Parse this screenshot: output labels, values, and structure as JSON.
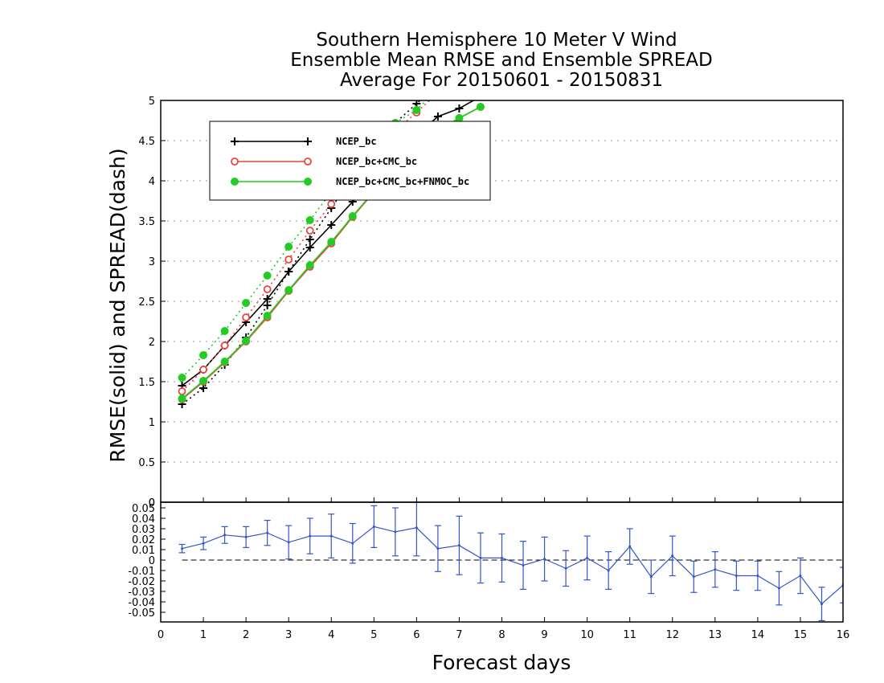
{
  "chart_data": [
    {
      "type": "line",
      "title": [
        "Southern Hemisphere 10 Meter V Wind",
        "Ensemble Mean RMSE and Ensemble SPREAD",
        "Average For 20150601 - 20150831"
      ],
      "xlabel": "Forecast days",
      "ylabel": "RMSE(solid) and SPREAD(dash)",
      "xlim": [
        0,
        16
      ],
      "ylim": [
        0,
        5
      ],
      "xticks": [
        "0",
        "1",
        "2",
        "3",
        "4",
        "5",
        "6",
        "7",
        "8",
        "9",
        "10",
        "11",
        "12",
        "13",
        "14",
        "15",
        "16"
      ],
      "yticks": [
        "0",
        "0.5",
        "1",
        "1.5",
        "2",
        "2.5",
        "3",
        "3.5",
        "4",
        "4.5",
        "5"
      ],
      "grid": true,
      "legend_position": "top-left",
      "series": [
        {
          "name": "NCEP_bc",
          "color": "#000000",
          "marker": "plus",
          "rmse": {
            "x": [
              0.5,
              1.0,
              1.5,
              2.0,
              2.5,
              3.0,
              3.5,
              4.0,
              4.5,
              5.0,
              5.5,
              6.0,
              6.5,
              7.0,
              7.5
            ],
            "y": [
              1.45,
              1.65,
              1.95,
              2.24,
              2.53,
              2.87,
              3.17,
              3.45,
              3.74,
              4.02,
              4.3,
              4.57,
              4.8,
              4.9,
              5.05
            ]
          },
          "spread": {
            "x": [
              0.5,
              1.0,
              1.5,
              2.0,
              2.5,
              3.0,
              3.5,
              4.0,
              4.5,
              5.0,
              5.5,
              6.0,
              6.5
            ],
            "y": [
              1.22,
              1.42,
              1.71,
              2.05,
              2.45,
              2.87,
              3.27,
              3.66,
              4.05,
              4.4,
              4.72,
              4.96,
              5.2
            ]
          }
        },
        {
          "name": "NCEP_bc+CMC_bc",
          "color": "#e8453c",
          "marker": "open-circle",
          "rmse": {
            "x": [
              0.5,
              1.0,
              1.5,
              2.0,
              2.5,
              3.0,
              3.5,
              4.0,
              4.5,
              5.0,
              5.5,
              6.0,
              6.5,
              7.0,
              7.5
            ],
            "y": [
              1.28,
              1.5,
              1.74,
              2.0,
              2.3,
              2.63,
              2.93,
              3.22,
              3.55,
              3.86,
              4.15,
              4.43,
              4.62,
              4.78,
              4.92
            ]
          },
          "spread": {
            "x": [
              0.5,
              1.0,
              1.5,
              2.0,
              2.5,
              3.0,
              3.5,
              4.0,
              4.5,
              5.0,
              5.5,
              6.0,
              6.5
            ],
            "y": [
              1.38,
              1.65,
              1.95,
              2.3,
              2.65,
              3.02,
              3.38,
              3.71,
              4.05,
              4.35,
              4.62,
              4.85,
              5.1
            ]
          }
        },
        {
          "name": "NCEP_bc+CMC_bc+FNMOC_bc",
          "color": "#22cc22",
          "marker": "filled-circle",
          "rmse": {
            "x": [
              0.5,
              1.0,
              1.5,
              2.0,
              2.5,
              3.0,
              3.5,
              4.0,
              4.5,
              5.0,
              5.5,
              6.0,
              6.5,
              7.0,
              7.5
            ],
            "y": [
              1.29,
              1.51,
              1.75,
              2.01,
              2.32,
              2.64,
              2.95,
              3.24,
              3.56,
              3.87,
              4.16,
              4.44,
              4.63,
              4.78,
              4.92
            ]
          },
          "spread": {
            "x": [
              0.5,
              1.0,
              1.5,
              2.0,
              2.5,
              3.0,
              3.5,
              4.0,
              4.5,
              5.0,
              5.5,
              6.0,
              6.5
            ],
            "y": [
              1.55,
              1.83,
              2.13,
              2.48,
              2.82,
              3.18,
              3.51,
              3.86,
              4.2,
              4.48,
              4.72,
              4.88,
              5.15
            ]
          }
        }
      ]
    },
    {
      "type": "line",
      "title": "",
      "xlabel": "Forecast days",
      "ylabel": "",
      "xlim": [
        0,
        16
      ],
      "ylim": [
        -0.058,
        0.058
      ],
      "xticks": [
        "0",
        "1",
        "2",
        "3",
        "4",
        "5",
        "6",
        "7",
        "8",
        "9",
        "10",
        "11",
        "12",
        "13",
        "14",
        "15",
        "16"
      ],
      "yticks": [
        "0.05",
        "0.04",
        "0.03",
        "0.02",
        "0.01",
        "0",
        "-0.01",
        "-0.02",
        "-0.03",
        "-0.04",
        "-0.05"
      ],
      "ytick_values": [
        0.05,
        0.04,
        0.03,
        0.02,
        0.01,
        0,
        -0.01,
        -0.02,
        -0.03,
        -0.04,
        -0.05
      ],
      "top_tick": "0",
      "reference_line": 0,
      "color": "#3355cc",
      "series": [
        {
          "x": [
            0.5,
            1.0,
            1.5,
            2.0,
            2.5,
            3.0,
            3.5,
            4.0,
            4.5,
            5.0,
            5.5,
            6.0,
            6.5,
            7.0,
            7.5,
            8.0,
            8.5,
            9.0,
            9.5,
            10.0,
            10.5,
            11.0,
            11.5,
            12.0,
            12.5,
            13.0,
            13.5,
            14.0,
            14.5,
            15.0,
            15.5,
            16.0
          ],
          "y": [
            0.011,
            0.016,
            0.024,
            0.022,
            0.026,
            0.017,
            0.023,
            0.023,
            0.016,
            0.032,
            0.027,
            0.031,
            0.011,
            0.014,
            0.002,
            0.002,
            -0.005,
            0.001,
            -0.008,
            0.002,
            -0.01,
            0.013,
            -0.016,
            0.004,
            -0.016,
            -0.009,
            -0.015,
            -0.015,
            -0.027,
            -0.015,
            -0.042,
            -0.024
          ],
          "err": [
            0.004,
            0.006,
            0.008,
            0.01,
            0.012,
            0.016,
            0.017,
            0.021,
            0.019,
            0.02,
            0.023,
            0.027,
            0.022,
            0.028,
            0.024,
            0.023,
            0.023,
            0.021,
            0.017,
            0.021,
            0.018,
            0.017,
            0.016,
            0.019,
            0.015,
            0.017,
            0.014,
            0.014,
            0.016,
            0.017,
            0.016,
            0.017
          ]
        }
      ]
    }
  ]
}
